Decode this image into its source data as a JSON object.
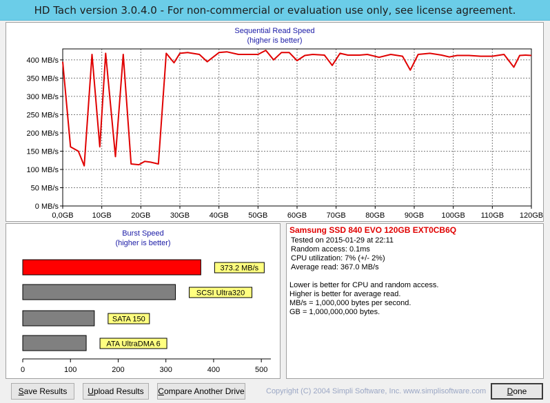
{
  "window": {
    "title": "HD Tach version 3.0.4.0  - For non-commercial or evaluation use only, see license agreement."
  },
  "colors": {
    "titlebar": "#6bcde8",
    "read_line": "#e00000",
    "burst_result_bar": "#ff0000",
    "burst_reference_bar": "#808080",
    "label_box": "#ffff80",
    "chart_title": "#1a1aa6"
  },
  "sequential_chart": {
    "title": "Sequential Read Speed",
    "subtitle": "(higher is better)"
  },
  "burst_chart": {
    "title": "Burst Speed",
    "subtitle": "(higher is better)"
  },
  "chart_data": [
    {
      "type": "line",
      "title": "Sequential Read Speed",
      "subtitle": "(higher is better)",
      "x_unit": "GB",
      "y_unit": "MB/s",
      "xlim": [
        0,
        120
      ],
      "ylim": [
        0,
        430
      ],
      "x_ticks": [
        0,
        10,
        20,
        30,
        40,
        50,
        60,
        70,
        80,
        90,
        100,
        110,
        120
      ],
      "x_tick_labels": [
        "0,0GB",
        "10GB",
        "20GB",
        "30GB",
        "40GB",
        "50GB",
        "60GB",
        "70GB",
        "80GB",
        "90GB",
        "100GB",
        "110GB",
        "120GB"
      ],
      "y_ticks": [
        0,
        50,
        100,
        150,
        200,
        250,
        300,
        350,
        400
      ],
      "y_tick_labels": [
        "0 MB/s",
        "50 MB/s",
        "100 MB/s",
        "150 MB/s",
        "200 MB/s",
        "250 MB/s",
        "300 MB/s",
        "350 MB/s",
        "400 MB/s"
      ],
      "grid": true,
      "series": [
        {
          "x": [
            0,
            2,
            4,
            5.5,
            7.5,
            9.5,
            11,
            13.5,
            15.5,
            17.5,
            19.5,
            21,
            22.5,
            24.5,
            26.5,
            28.5,
            30,
            32,
            35,
            37,
            40,
            42,
            45,
            47.5,
            50,
            52,
            54,
            56,
            58,
            60,
            62,
            64,
            67,
            69,
            71,
            73,
            76,
            78,
            81,
            84,
            87,
            89,
            91,
            94,
            97,
            99,
            101,
            104,
            107,
            110,
            113,
            115.5,
            117,
            118.5,
            120
          ],
          "y": [
            395,
            162,
            150,
            110,
            415,
            162,
            418,
            135,
            415,
            115,
            113,
            122,
            120,
            115,
            418,
            392,
            418,
            420,
            415,
            395,
            420,
            422,
            415,
            415,
            415,
            426,
            400,
            420,
            420,
            398,
            412,
            415,
            413,
            385,
            418,
            413,
            413,
            415,
            407,
            415,
            410,
            372,
            415,
            418,
            413,
            408,
            412,
            412,
            410,
            410,
            415,
            380,
            412,
            413,
            412
          ]
        }
      ]
    },
    {
      "type": "bar",
      "orientation": "horizontal",
      "title": "Burst Speed",
      "subtitle": "(higher is better)",
      "xlim": [
        0,
        520
      ],
      "x_ticks": [
        0,
        100,
        200,
        300,
        400,
        500
      ],
      "x_tick_labels": [
        "0",
        "100",
        "200",
        "300",
        "400",
        "500"
      ],
      "categories": [
        "373.2 MB/s",
        "SCSI Ultra320",
        "SATA 150",
        "ATA UltraDMA 6"
      ],
      "values": [
        373.2,
        320,
        150,
        133
      ],
      "bar_colors": [
        "#ff0000",
        "#808080",
        "#808080",
        "#808080"
      ]
    }
  ],
  "drive_info": {
    "name": "Samsung SSD 840 EVO 120GB EXT0CB6Q",
    "tested_on": "Tested on 2015-01-29 at 22:11",
    "random_access": "Random access: 0.1ms",
    "cpu_utilization": "CPU utilization: 7% (+/- 2%)",
    "average_read": "Average read: 367.0 MB/s",
    "notes": [
      "Lower is better for CPU and random access.",
      "Higher is better for average read.",
      "MB/s = 1,000,000 bytes per second.",
      "GB = 1,000,000,000 bytes."
    ]
  },
  "buttons": {
    "save_first": "S",
    "save_rest": "ave Results",
    "upload_first": "U",
    "upload_rest": "pload Results",
    "compare_first": "C",
    "compare_rest": "ompare Another Drive",
    "done_first": "D",
    "done_rest": "one"
  },
  "footer": {
    "copyright": "Copyright (C) 2004 Simpli Software, Inc. www.simplisoftware.com"
  }
}
